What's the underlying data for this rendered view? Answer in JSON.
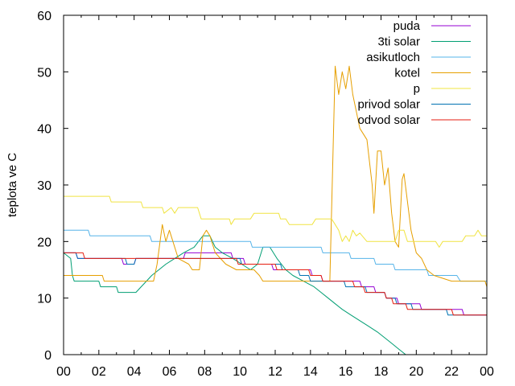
{
  "chart_data": {
    "type": "line",
    "ylabel": "teplota ve C",
    "xlabel": "",
    "title": "",
    "x_ticks": [
      "00",
      "02",
      "04",
      "06",
      "08",
      "10",
      "12",
      "14",
      "16",
      "18",
      "20",
      "22",
      "00"
    ],
    "xlim": [
      0,
      24
    ],
    "ylim": [
      0,
      60
    ],
    "y_ticks": [
      0,
      10,
      20,
      30,
      40,
      50,
      60
    ],
    "grid": false,
    "legend_position": "top-right",
    "series": [
      {
        "name": "puda",
        "color": "#9400d3",
        "points": [
          [
            0,
            18
          ],
          [
            0.7,
            18
          ],
          [
            0.8,
            17
          ],
          [
            2,
            17
          ],
          [
            3.3,
            17
          ],
          [
            3.4,
            16
          ],
          [
            4,
            16
          ],
          [
            4.1,
            17
          ],
          [
            6.8,
            17
          ],
          [
            6.9,
            18
          ],
          [
            9.5,
            18
          ],
          [
            9.6,
            17
          ],
          [
            10.2,
            17
          ],
          [
            10.3,
            16
          ],
          [
            11.8,
            16
          ],
          [
            11.9,
            15
          ],
          [
            14,
            15
          ],
          [
            14.1,
            14
          ],
          [
            14.6,
            14
          ],
          [
            14.7,
            13
          ],
          [
            16.8,
            13
          ],
          [
            16.9,
            12
          ],
          [
            17.6,
            12
          ],
          [
            17.7,
            11
          ],
          [
            18.2,
            11
          ],
          [
            18.3,
            10
          ],
          [
            18.9,
            10
          ],
          [
            19,
            9
          ],
          [
            20.2,
            9
          ],
          [
            20.3,
            8
          ],
          [
            22.6,
            8
          ],
          [
            22.7,
            7
          ],
          [
            24,
            7
          ]
        ]
      },
      {
        "name": "3ti solar",
        "color": "#009e73",
        "points": [
          [
            0,
            18
          ],
          [
            0.4,
            17
          ],
          [
            0.5,
            14
          ],
          [
            0.6,
            13
          ],
          [
            2,
            13
          ],
          [
            2.1,
            12
          ],
          [
            3,
            12
          ],
          [
            3.1,
            11
          ],
          [
            4.1,
            11
          ],
          [
            4.4,
            12
          ],
          [
            4.7,
            13
          ],
          [
            5,
            14
          ],
          [
            5.4,
            15
          ],
          [
            5.8,
            16
          ],
          [
            6.3,
            17
          ],
          [
            6.8,
            18
          ],
          [
            7.4,
            19
          ],
          [
            7.9,
            21
          ],
          [
            8.3,
            21
          ],
          [
            8.6,
            19
          ],
          [
            9,
            18
          ],
          [
            9.6,
            17
          ],
          [
            10.1,
            16
          ],
          [
            10.6,
            15
          ],
          [
            11,
            16
          ],
          [
            11.3,
            19
          ],
          [
            11.7,
            19
          ],
          [
            12.1,
            17
          ],
          [
            12.6,
            15
          ],
          [
            13,
            14
          ],
          [
            13.6,
            13
          ],
          [
            14.2,
            12
          ],
          [
            14.6,
            11
          ],
          [
            15,
            10
          ],
          [
            15.4,
            9
          ],
          [
            15.8,
            8
          ],
          [
            16.3,
            7
          ],
          [
            16.8,
            6
          ],
          [
            17.3,
            5
          ],
          [
            17.8,
            4
          ],
          [
            18.2,
            3
          ],
          [
            18.6,
            2
          ],
          [
            19,
            1
          ],
          [
            19.4,
            0
          ],
          [
            19.6,
            0
          ]
        ]
      },
      {
        "name": "asikutloch",
        "color": "#56b4e9",
        "points": [
          [
            0,
            22
          ],
          [
            1.4,
            22
          ],
          [
            1.5,
            21
          ],
          [
            4.9,
            21
          ],
          [
            5,
            20
          ],
          [
            10.6,
            20
          ],
          [
            10.7,
            19
          ],
          [
            14.6,
            19
          ],
          [
            14.7,
            18
          ],
          [
            16.2,
            18
          ],
          [
            16.3,
            17
          ],
          [
            17.6,
            17
          ],
          [
            17.7,
            16
          ],
          [
            18.7,
            16
          ],
          [
            18.8,
            15
          ],
          [
            20.6,
            15
          ],
          [
            20.7,
            14
          ],
          [
            22.3,
            14
          ],
          [
            22.5,
            13
          ],
          [
            24,
            13
          ]
        ]
      },
      {
        "name": "kotel",
        "color": "#e69f00",
        "points": [
          [
            0,
            14
          ],
          [
            2.2,
            14
          ],
          [
            2.3,
            13
          ],
          [
            5.1,
            13
          ],
          [
            5.3,
            16
          ],
          [
            5.6,
            23
          ],
          [
            5.8,
            20
          ],
          [
            6,
            22
          ],
          [
            6.2,
            20
          ],
          [
            6.5,
            17
          ],
          [
            7.1,
            16
          ],
          [
            7.3,
            15
          ],
          [
            7.7,
            15
          ],
          [
            7.9,
            21
          ],
          [
            8.1,
            22
          ],
          [
            8.3,
            21
          ],
          [
            8.6,
            18
          ],
          [
            9.2,
            16
          ],
          [
            9.8,
            15
          ],
          [
            10.8,
            15
          ],
          [
            11.1,
            14
          ],
          [
            11.3,
            13
          ],
          [
            15.1,
            13
          ],
          [
            15.4,
            51
          ],
          [
            15.6,
            46
          ],
          [
            15.8,
            50
          ],
          [
            16,
            47
          ],
          [
            16.2,
            51
          ],
          [
            16.4,
            46
          ],
          [
            16.8,
            40
          ],
          [
            17.2,
            38
          ],
          [
            17.5,
            30
          ],
          [
            17.6,
            25
          ],
          [
            17.8,
            36
          ],
          [
            18,
            36
          ],
          [
            18.1,
            33
          ],
          [
            18.2,
            30
          ],
          [
            18.4,
            33
          ],
          [
            18.6,
            25
          ],
          [
            18.8,
            20
          ],
          [
            19,
            19
          ],
          [
            19.2,
            31
          ],
          [
            19.3,
            32
          ],
          [
            19.5,
            27
          ],
          [
            19.7,
            22
          ],
          [
            20,
            18
          ],
          [
            20.3,
            17
          ],
          [
            20.6,
            15
          ],
          [
            21,
            14
          ],
          [
            22,
            13
          ],
          [
            23.9,
            13
          ],
          [
            24,
            12
          ]
        ]
      },
      {
        "name": "p",
        "color": "#f0e442",
        "points": [
          [
            0,
            28
          ],
          [
            2.6,
            28
          ],
          [
            2.7,
            27
          ],
          [
            4.4,
            27
          ],
          [
            4.5,
            26
          ],
          [
            5.6,
            26
          ],
          [
            5.7,
            25
          ],
          [
            6.1,
            26
          ],
          [
            6.3,
            25
          ],
          [
            6.5,
            26
          ],
          [
            7.6,
            26
          ],
          [
            7.8,
            24
          ],
          [
            9.4,
            24
          ],
          [
            9.5,
            23
          ],
          [
            9.7,
            24
          ],
          [
            10.6,
            24
          ],
          [
            10.8,
            25
          ],
          [
            12.2,
            25
          ],
          [
            12.3,
            24
          ],
          [
            12.6,
            24
          ],
          [
            12.8,
            23
          ],
          [
            14.1,
            23
          ],
          [
            14.3,
            24
          ],
          [
            15.2,
            24
          ],
          [
            15.4,
            23
          ],
          [
            15.6,
            22
          ],
          [
            15.8,
            20
          ],
          [
            16,
            21
          ],
          [
            16.2,
            20
          ],
          [
            16.4,
            22
          ],
          [
            16.6,
            21
          ],
          [
            16.8,
            21.5
          ],
          [
            17.2,
            20
          ],
          [
            18.8,
            20
          ],
          [
            19,
            22
          ],
          [
            19.3,
            22
          ],
          [
            19.5,
            20
          ],
          [
            21.1,
            20
          ],
          [
            21.3,
            19
          ],
          [
            21.5,
            20
          ],
          [
            22.6,
            20
          ],
          [
            22.8,
            21
          ],
          [
            23.3,
            21
          ],
          [
            23.5,
            22
          ],
          [
            23.7,
            21
          ],
          [
            24,
            21
          ]
        ]
      },
      {
        "name": "privod solar",
        "color": "#0072b2",
        "points": [
          [
            0,
            18
          ],
          [
            0.7,
            18
          ],
          [
            0.8,
            17
          ],
          [
            3.5,
            17
          ],
          [
            3.6,
            16
          ],
          [
            4,
            16
          ],
          [
            4.1,
            17
          ],
          [
            10,
            17
          ],
          [
            10.1,
            16
          ],
          [
            12.3,
            16
          ],
          [
            12.4,
            15
          ],
          [
            13.3,
            15
          ],
          [
            13.4,
            14
          ],
          [
            13.9,
            14
          ],
          [
            14,
            13
          ],
          [
            15.9,
            13
          ],
          [
            16,
            12
          ],
          [
            17.1,
            12
          ],
          [
            17.2,
            11
          ],
          [
            18.2,
            11
          ],
          [
            18.3,
            10
          ],
          [
            18.8,
            10
          ],
          [
            18.9,
            9
          ],
          [
            19.7,
            9
          ],
          [
            19.8,
            8
          ],
          [
            21.7,
            8
          ],
          [
            21.8,
            7
          ],
          [
            24,
            7
          ]
        ]
      },
      {
        "name": "odvod solar",
        "color": "#e51e10",
        "points": [
          [
            0,
            18
          ],
          [
            1.1,
            18
          ],
          [
            1.2,
            17
          ],
          [
            9.8,
            17
          ],
          [
            9.9,
            16
          ],
          [
            12,
            16
          ],
          [
            12.1,
            15
          ],
          [
            13.9,
            15
          ],
          [
            14,
            14
          ],
          [
            14.6,
            14
          ],
          [
            14.7,
            13
          ],
          [
            16.4,
            13
          ],
          [
            16.5,
            12
          ],
          [
            17,
            12
          ],
          [
            17.1,
            11
          ],
          [
            18.2,
            11
          ],
          [
            18.3,
            10
          ],
          [
            18.6,
            10
          ],
          [
            18.7,
            9
          ],
          [
            19.4,
            9
          ],
          [
            19.5,
            8
          ],
          [
            22,
            8
          ],
          [
            22.1,
            7
          ],
          [
            24,
            7
          ]
        ]
      }
    ]
  }
}
